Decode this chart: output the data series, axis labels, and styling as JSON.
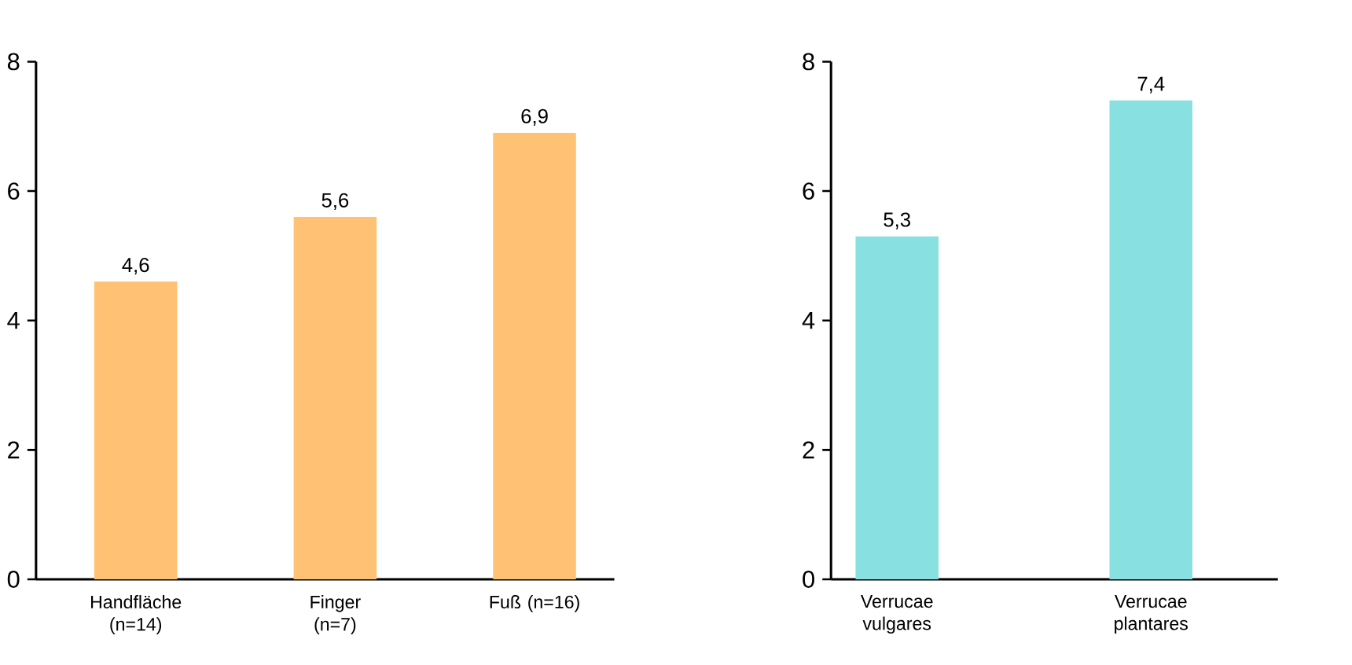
{
  "chart_data": [
    {
      "type": "bar",
      "categories": [
        "Handfläche (n=14)",
        "Finger (n=7)",
        "Fuß (n=16)"
      ],
      "values": [
        4.6,
        5.6,
        6.9
      ],
      "value_labels": [
        "4,6",
        "5,6",
        "6,9"
      ],
      "color": "#ffc274",
      "ylim": [
        0,
        8
      ],
      "yticks": [
        0,
        2,
        4,
        6,
        8
      ],
      "grid": false
    },
    {
      "type": "bar",
      "categories": [
        "Verrucae vulgares",
        "Verrucae plantares"
      ],
      "values": [
        5.3,
        7.4
      ],
      "value_labels": [
        "5,3",
        "7,4"
      ],
      "color": "#88e0e0",
      "ylim": [
        0,
        8
      ],
      "yticks": [
        0,
        2,
        4,
        6,
        8
      ],
      "grid": false
    }
  ]
}
